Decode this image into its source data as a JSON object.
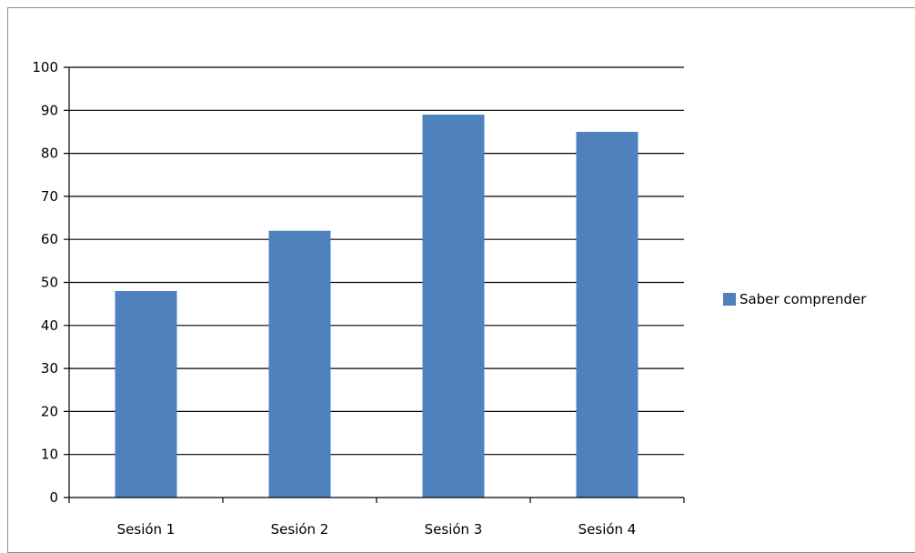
{
  "chart_data": {
    "type": "bar",
    "title": "",
    "xlabel": "",
    "ylabel": "",
    "categories": [
      "Sesión 1",
      "Sesión 2",
      "Sesión 3",
      "Sesión 4"
    ],
    "series": [
      {
        "name": "Saber comprender",
        "color": "#4f81bd",
        "values": [
          48,
          62,
          89,
          85
        ]
      }
    ],
    "ylim": [
      0,
      100
    ],
    "yticks": [
      "0",
      "10",
      "20",
      "30",
      "40",
      "50",
      "60",
      "70",
      "80",
      "90",
      "100"
    ],
    "grid": true,
    "legend_position": "right"
  }
}
